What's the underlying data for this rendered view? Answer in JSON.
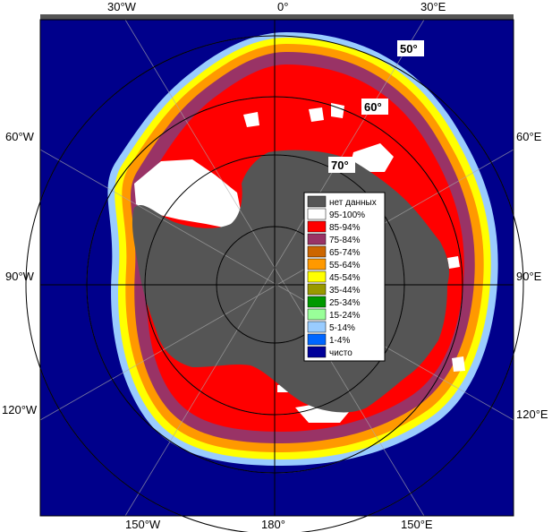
{
  "edge_labels": {
    "top": [
      "30°W",
      "0°",
      "30°E"
    ],
    "left": [
      "60°W",
      "90°W",
      "120°W"
    ],
    "right": [
      "60°E",
      "90°E",
      "120°E"
    ],
    "bottom": [
      "150°W",
      "180°",
      "150°E"
    ]
  },
  "latitude_labels": [
    "50°",
    "60°",
    "70°"
  ],
  "legend": {
    "items": [
      {
        "label": "нет данных",
        "color": "#555555"
      },
      {
        "label": "95-100%",
        "color": "#ffffff"
      },
      {
        "label": "85-94%",
        "color": "#ff0000"
      },
      {
        "label": "75-84%",
        "color": "#993366"
      },
      {
        "label": "65-74%",
        "color": "#cc6600"
      },
      {
        "label": "55-64%",
        "color": "#ff9900"
      },
      {
        "label": "45-54%",
        "color": "#ffff00"
      },
      {
        "label": "35-44%",
        "color": "#999900"
      },
      {
        "label": "25-34%",
        "color": "#009900"
      },
      {
        "label": "15-24%",
        "color": "#99ff99"
      },
      {
        "label": "5-14%",
        "color": "#99ccff"
      },
      {
        "label": "1-4%",
        "color": "#0066ff"
      },
      {
        "label": "чисто",
        "color": "#000099"
      }
    ]
  },
  "colors": {
    "ocean": "#00008b",
    "land": "#555555",
    "grid": "#aaaaaa",
    "frame": "#555555"
  }
}
